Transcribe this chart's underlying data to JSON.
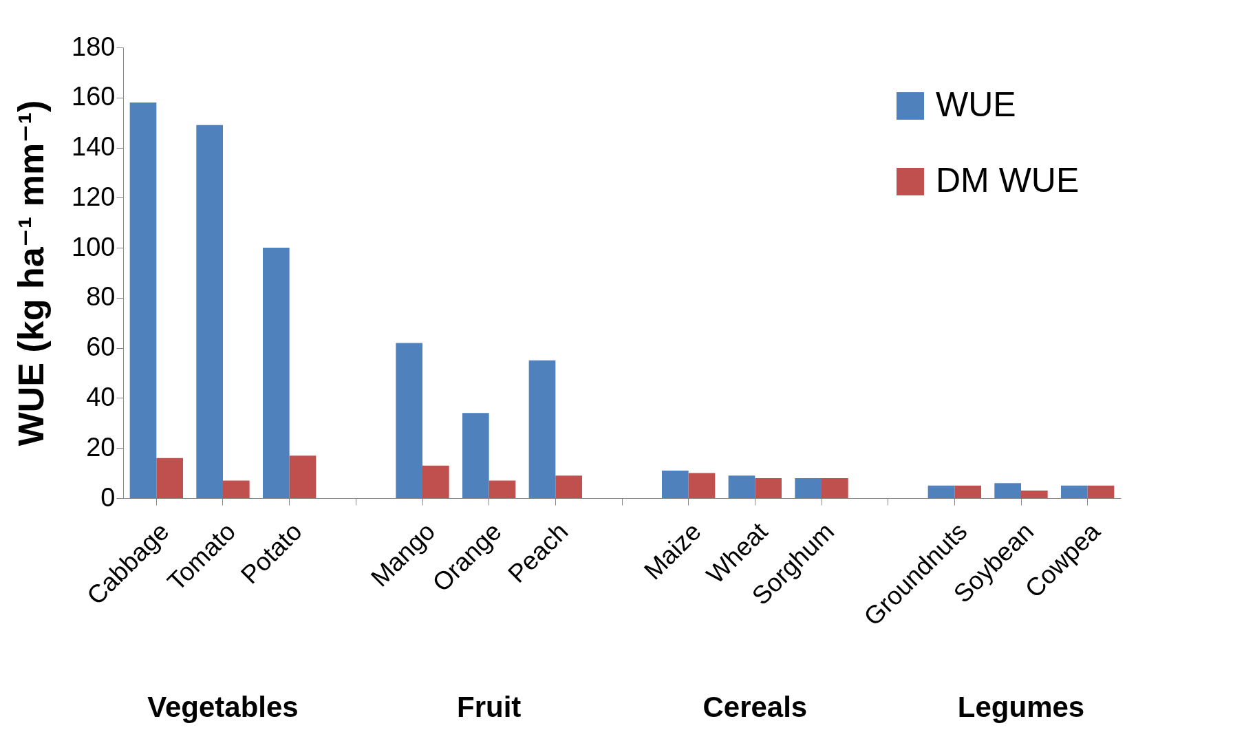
{
  "chart_data": {
    "type": "bar",
    "ylabel": "WUE (kg ha⁻¹ mm⁻¹)",
    "categories": [
      "Cabbage",
      "Tomato",
      "Potato",
      null,
      "Mango",
      "Orange",
      "Peach",
      null,
      "Maize",
      "Wheat",
      "Sorghum",
      null,
      "Groundnuts",
      "Soybean",
      "Cowpea"
    ],
    "series": [
      {
        "name": "WUE",
        "color": "#4f81bd",
        "values": [
          158,
          149,
          100,
          null,
          62,
          34,
          55,
          null,
          11,
          9,
          8,
          null,
          5,
          6,
          5
        ]
      },
      {
        "name": "DM WUE",
        "color": "#c0504d",
        "values": [
          16,
          7,
          17,
          null,
          13,
          7,
          9,
          null,
          10,
          8,
          8,
          null,
          5,
          3,
          5
        ]
      }
    ],
    "annotations": [
      "Vegetables",
      "Fruit",
      "Cereals",
      "Legumes"
    ],
    "ylim": [
      0,
      180
    ],
    "yticks": [
      0,
      20,
      40,
      60,
      80,
      100,
      120,
      140,
      160,
      180
    ],
    "grid": false,
    "legend": "top right"
  }
}
